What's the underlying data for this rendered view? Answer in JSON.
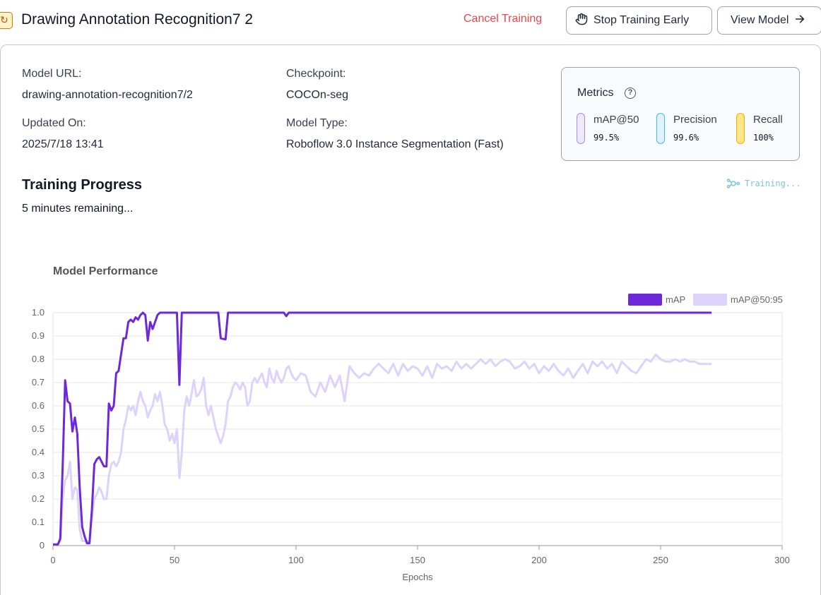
{
  "header": {
    "title": "Drawing Annotation Recognition7 2",
    "project_icon": "refresh-icon",
    "cancel_label": "Cancel Training",
    "stop_label": "Stop Training Early",
    "stop_icon": "hand-icon",
    "view_label": "View Model",
    "view_icon": "arrow-right-icon"
  },
  "details": {
    "model_url_label": "Model URL:",
    "model_url_value": "drawing-annotation-recognition7/2",
    "updated_label": "Updated On:",
    "updated_value": "2025/7/18 13:41",
    "checkpoint_label": "Checkpoint:",
    "checkpoint_value": "COCOn-seg",
    "model_type_label": "Model Type:",
    "model_type_value": "Roboflow 3.0 Instance Segmentation (Fast)"
  },
  "metrics": {
    "title": "Metrics",
    "items": [
      {
        "label": "mAP@50",
        "value": "99.5%",
        "color": "#a78bfa",
        "fill": "#ede9fe"
      },
      {
        "label": "Precision",
        "value": "99.6%",
        "color": "#38bdf8",
        "fill": "#e0f2fe"
      },
      {
        "label": "Recall",
        "value": "100%",
        "color": "#f5b100",
        "fill": "#fde68a"
      }
    ]
  },
  "progress": {
    "title": "Training Progress",
    "remaining": "5 minutes remaining...",
    "status": "Training...",
    "status_color": "#7dc5d8"
  },
  "chart_data": {
    "type": "line",
    "title": "Model Performance",
    "xlabel": "Epochs",
    "ylabel": "",
    "xlim": [
      0,
      300
    ],
    "ylim": [
      0,
      1
    ],
    "xticks": [
      0,
      50,
      100,
      150,
      200,
      250,
      300
    ],
    "yticks": [
      0,
      0.1,
      0.2,
      0.3,
      0.4,
      0.5,
      0.6,
      0.7,
      0.8,
      0.9,
      1.0
    ],
    "ytick_labels": [
      "0",
      "0.1",
      "0.2",
      "0.3",
      "0.4",
      "0.5",
      "0.6",
      "0.7",
      "0.8",
      "0.9",
      "1.0"
    ],
    "grid": true,
    "legend_position": "top-right",
    "series": [
      {
        "name": "mAP",
        "color": "#6d28d9",
        "points": [
          [
            0,
            0.005
          ],
          [
            2,
            0.005
          ],
          [
            3,
            0.03
          ],
          [
            4,
            0.35
          ],
          [
            5,
            0.71
          ],
          [
            6,
            0.62
          ],
          [
            7,
            0.61
          ],
          [
            8,
            0.49
          ],
          [
            9,
            0.55
          ],
          [
            10,
            0.48
          ],
          [
            11,
            0.25
          ],
          [
            12,
            0.08
          ],
          [
            13,
            0.04
          ],
          [
            14,
            0.01
          ],
          [
            15,
            0.01
          ],
          [
            16,
            0.15
          ],
          [
            17,
            0.35
          ],
          [
            18,
            0.37
          ],
          [
            19,
            0.38
          ],
          [
            20,
            0.36
          ],
          [
            21,
            0.34
          ],
          [
            22,
            0.34
          ],
          [
            23,
            0.61
          ],
          [
            24,
            0.58
          ],
          [
            25,
            0.6
          ],
          [
            26,
            0.74
          ],
          [
            27,
            0.75
          ],
          [
            28,
            0.82
          ],
          [
            29,
            0.89
          ],
          [
            30,
            0.89
          ],
          [
            31,
            0.96
          ],
          [
            32,
            0.97
          ],
          [
            33,
            0.96
          ],
          [
            34,
            0.98
          ],
          [
            35,
            0.97
          ],
          [
            36,
            0.99
          ],
          [
            37,
            1.0
          ],
          [
            38,
            0.99
          ],
          [
            39,
            0.88
          ],
          [
            40,
            0.96
          ],
          [
            41,
            0.93
          ],
          [
            42,
            0.96
          ],
          [
            43,
            0.99
          ],
          [
            44,
            1.0
          ],
          [
            50,
            1.0
          ],
          [
            51,
            1.0
          ],
          [
            52,
            0.69
          ],
          [
            53,
            1.0
          ],
          [
            68,
            1.0
          ],
          [
            69,
            0.89
          ],
          [
            71,
            0.885
          ],
          [
            72,
            1.0
          ],
          [
            95,
            1.0
          ],
          [
            96,
            0.985
          ],
          [
            97,
            1.0
          ],
          [
            271,
            1.0
          ]
        ]
      },
      {
        "name": "mAP@50:95",
        "color": "#dcd3fa",
        "points": [
          [
            0,
            0.005
          ],
          [
            2,
            0.005
          ],
          [
            3,
            0.02
          ],
          [
            4,
            0.2
          ],
          [
            5,
            0.28
          ],
          [
            6,
            0.3
          ],
          [
            7,
            0.36
          ],
          [
            8,
            0.2
          ],
          [
            9,
            0.25
          ],
          [
            10,
            0.24
          ],
          [
            11,
            0.07
          ],
          [
            12,
            0.02
          ],
          [
            14,
            0.02
          ],
          [
            15,
            0.01
          ],
          [
            16,
            0.12
          ],
          [
            17,
            0.2
          ],
          [
            18,
            0.22
          ],
          [
            19,
            0.25
          ],
          [
            20,
            0.23
          ],
          [
            21,
            0.2
          ],
          [
            22,
            0.2
          ],
          [
            23,
            0.3
          ],
          [
            24,
            0.35
          ],
          [
            25,
            0.36
          ],
          [
            26,
            0.34
          ],
          [
            27,
            0.36
          ],
          [
            28,
            0.4
          ],
          [
            29,
            0.5
          ],
          [
            30,
            0.54
          ],
          [
            31,
            0.6
          ],
          [
            32,
            0.58
          ],
          [
            33,
            0.6
          ],
          [
            34,
            0.56
          ],
          [
            35,
            0.62
          ],
          [
            36,
            0.66
          ],
          [
            37,
            0.62
          ],
          [
            38,
            0.6
          ],
          [
            39,
            0.55
          ],
          [
            40,
            0.58
          ],
          [
            41,
            0.6
          ],
          [
            42,
            0.65
          ],
          [
            43,
            0.62
          ],
          [
            44,
            0.66
          ],
          [
            45,
            0.6
          ],
          [
            46,
            0.52
          ],
          [
            47,
            0.5
          ],
          [
            48,
            0.45
          ],
          [
            49,
            0.48
          ],
          [
            50,
            0.44
          ],
          [
            51,
            0.5
          ],
          [
            52,
            0.29
          ],
          [
            53,
            0.4
          ],
          [
            54,
            0.58
          ],
          [
            55,
            0.64
          ],
          [
            56,
            0.6
          ],
          [
            57,
            0.65
          ],
          [
            58,
            0.71
          ],
          [
            59,
            0.64
          ],
          [
            60,
            0.65
          ],
          [
            61,
            0.67
          ],
          [
            62,
            0.72
          ],
          [
            63,
            0.6
          ],
          [
            64,
            0.56
          ],
          [
            65,
            0.6
          ],
          [
            66,
            0.55
          ],
          [
            67,
            0.5
          ],
          [
            68,
            0.47
          ],
          [
            69,
            0.44
          ],
          [
            70,
            0.47
          ],
          [
            71,
            0.52
          ],
          [
            72,
            0.62
          ],
          [
            73,
            0.64
          ],
          [
            74,
            0.68
          ],
          [
            75,
            0.7
          ],
          [
            76,
            0.69
          ],
          [
            77,
            0.67
          ],
          [
            78,
            0.7
          ],
          [
            79,
            0.68
          ],
          [
            80,
            0.6
          ],
          [
            81,
            0.62
          ],
          [
            82,
            0.7
          ],
          [
            83,
            0.72
          ],
          [
            84,
            0.7
          ],
          [
            85,
            0.72
          ],
          [
            86,
            0.74
          ],
          [
            87,
            0.7
          ],
          [
            88,
            0.68
          ],
          [
            89,
            0.76
          ],
          [
            90,
            0.72
          ],
          [
            91,
            0.7
          ],
          [
            92,
            0.75
          ],
          [
            93,
            0.72
          ],
          [
            94,
            0.7
          ],
          [
            95,
            0.72
          ],
          [
            96,
            0.76
          ],
          [
            97,
            0.77
          ],
          [
            98,
            0.74
          ],
          [
            99,
            0.72
          ],
          [
            100,
            0.71
          ],
          [
            102,
            0.74
          ],
          [
            104,
            0.73
          ],
          [
            106,
            0.66
          ],
          [
            108,
            0.64
          ],
          [
            110,
            0.7
          ],
          [
            112,
            0.66
          ],
          [
            114,
            0.73
          ],
          [
            116,
            0.68
          ],
          [
            118,
            0.73
          ],
          [
            120,
            0.62
          ],
          [
            122,
            0.77
          ],
          [
            124,
            0.74
          ],
          [
            126,
            0.72
          ],
          [
            128,
            0.74
          ],
          [
            130,
            0.73
          ],
          [
            132,
            0.76
          ],
          [
            134,
            0.78
          ],
          [
            136,
            0.76
          ],
          [
            138,
            0.74
          ],
          [
            140,
            0.78
          ],
          [
            142,
            0.73
          ],
          [
            144,
            0.78
          ],
          [
            146,
            0.75
          ],
          [
            148,
            0.77
          ],
          [
            150,
            0.76
          ],
          [
            152,
            0.73
          ],
          [
            154,
            0.77
          ],
          [
            156,
            0.72
          ],
          [
            158,
            0.78
          ],
          [
            160,
            0.76
          ],
          [
            162,
            0.77
          ],
          [
            164,
            0.75
          ],
          [
            166,
            0.79
          ],
          [
            168,
            0.76
          ],
          [
            170,
            0.78
          ],
          [
            172,
            0.76
          ],
          [
            174,
            0.78
          ],
          [
            176,
            0.8
          ],
          [
            178,
            0.78
          ],
          [
            180,
            0.8
          ],
          [
            182,
            0.77
          ],
          [
            184,
            0.79
          ],
          [
            186,
            0.8
          ],
          [
            188,
            0.79
          ],
          [
            190,
            0.76
          ],
          [
            192,
            0.77
          ],
          [
            194,
            0.79
          ],
          [
            196,
            0.76
          ],
          [
            198,
            0.78
          ],
          [
            200,
            0.74
          ],
          [
            202,
            0.77
          ],
          [
            204,
            0.75
          ],
          [
            206,
            0.78
          ],
          [
            208,
            0.75
          ],
          [
            210,
            0.73
          ],
          [
            212,
            0.76
          ],
          [
            214,
            0.72
          ],
          [
            216,
            0.75
          ],
          [
            218,
            0.78
          ],
          [
            220,
            0.74
          ],
          [
            222,
            0.79
          ],
          [
            224,
            0.77
          ],
          [
            226,
            0.79
          ],
          [
            228,
            0.76
          ],
          [
            230,
            0.78
          ],
          [
            232,
            0.74
          ],
          [
            234,
            0.79
          ],
          [
            236,
            0.77
          ],
          [
            238,
            0.75
          ],
          [
            240,
            0.74
          ],
          [
            242,
            0.77
          ],
          [
            244,
            0.8
          ],
          [
            246,
            0.79
          ],
          [
            248,
            0.82
          ],
          [
            250,
            0.8
          ],
          [
            252,
            0.79
          ],
          [
            254,
            0.79
          ],
          [
            256,
            0.8
          ],
          [
            258,
            0.79
          ],
          [
            260,
            0.8
          ],
          [
            262,
            0.79
          ],
          [
            264,
            0.79
          ],
          [
            266,
            0.78
          ],
          [
            268,
            0.78
          ],
          [
            270,
            0.78
          ],
          [
            271,
            0.78
          ]
        ]
      }
    ]
  }
}
